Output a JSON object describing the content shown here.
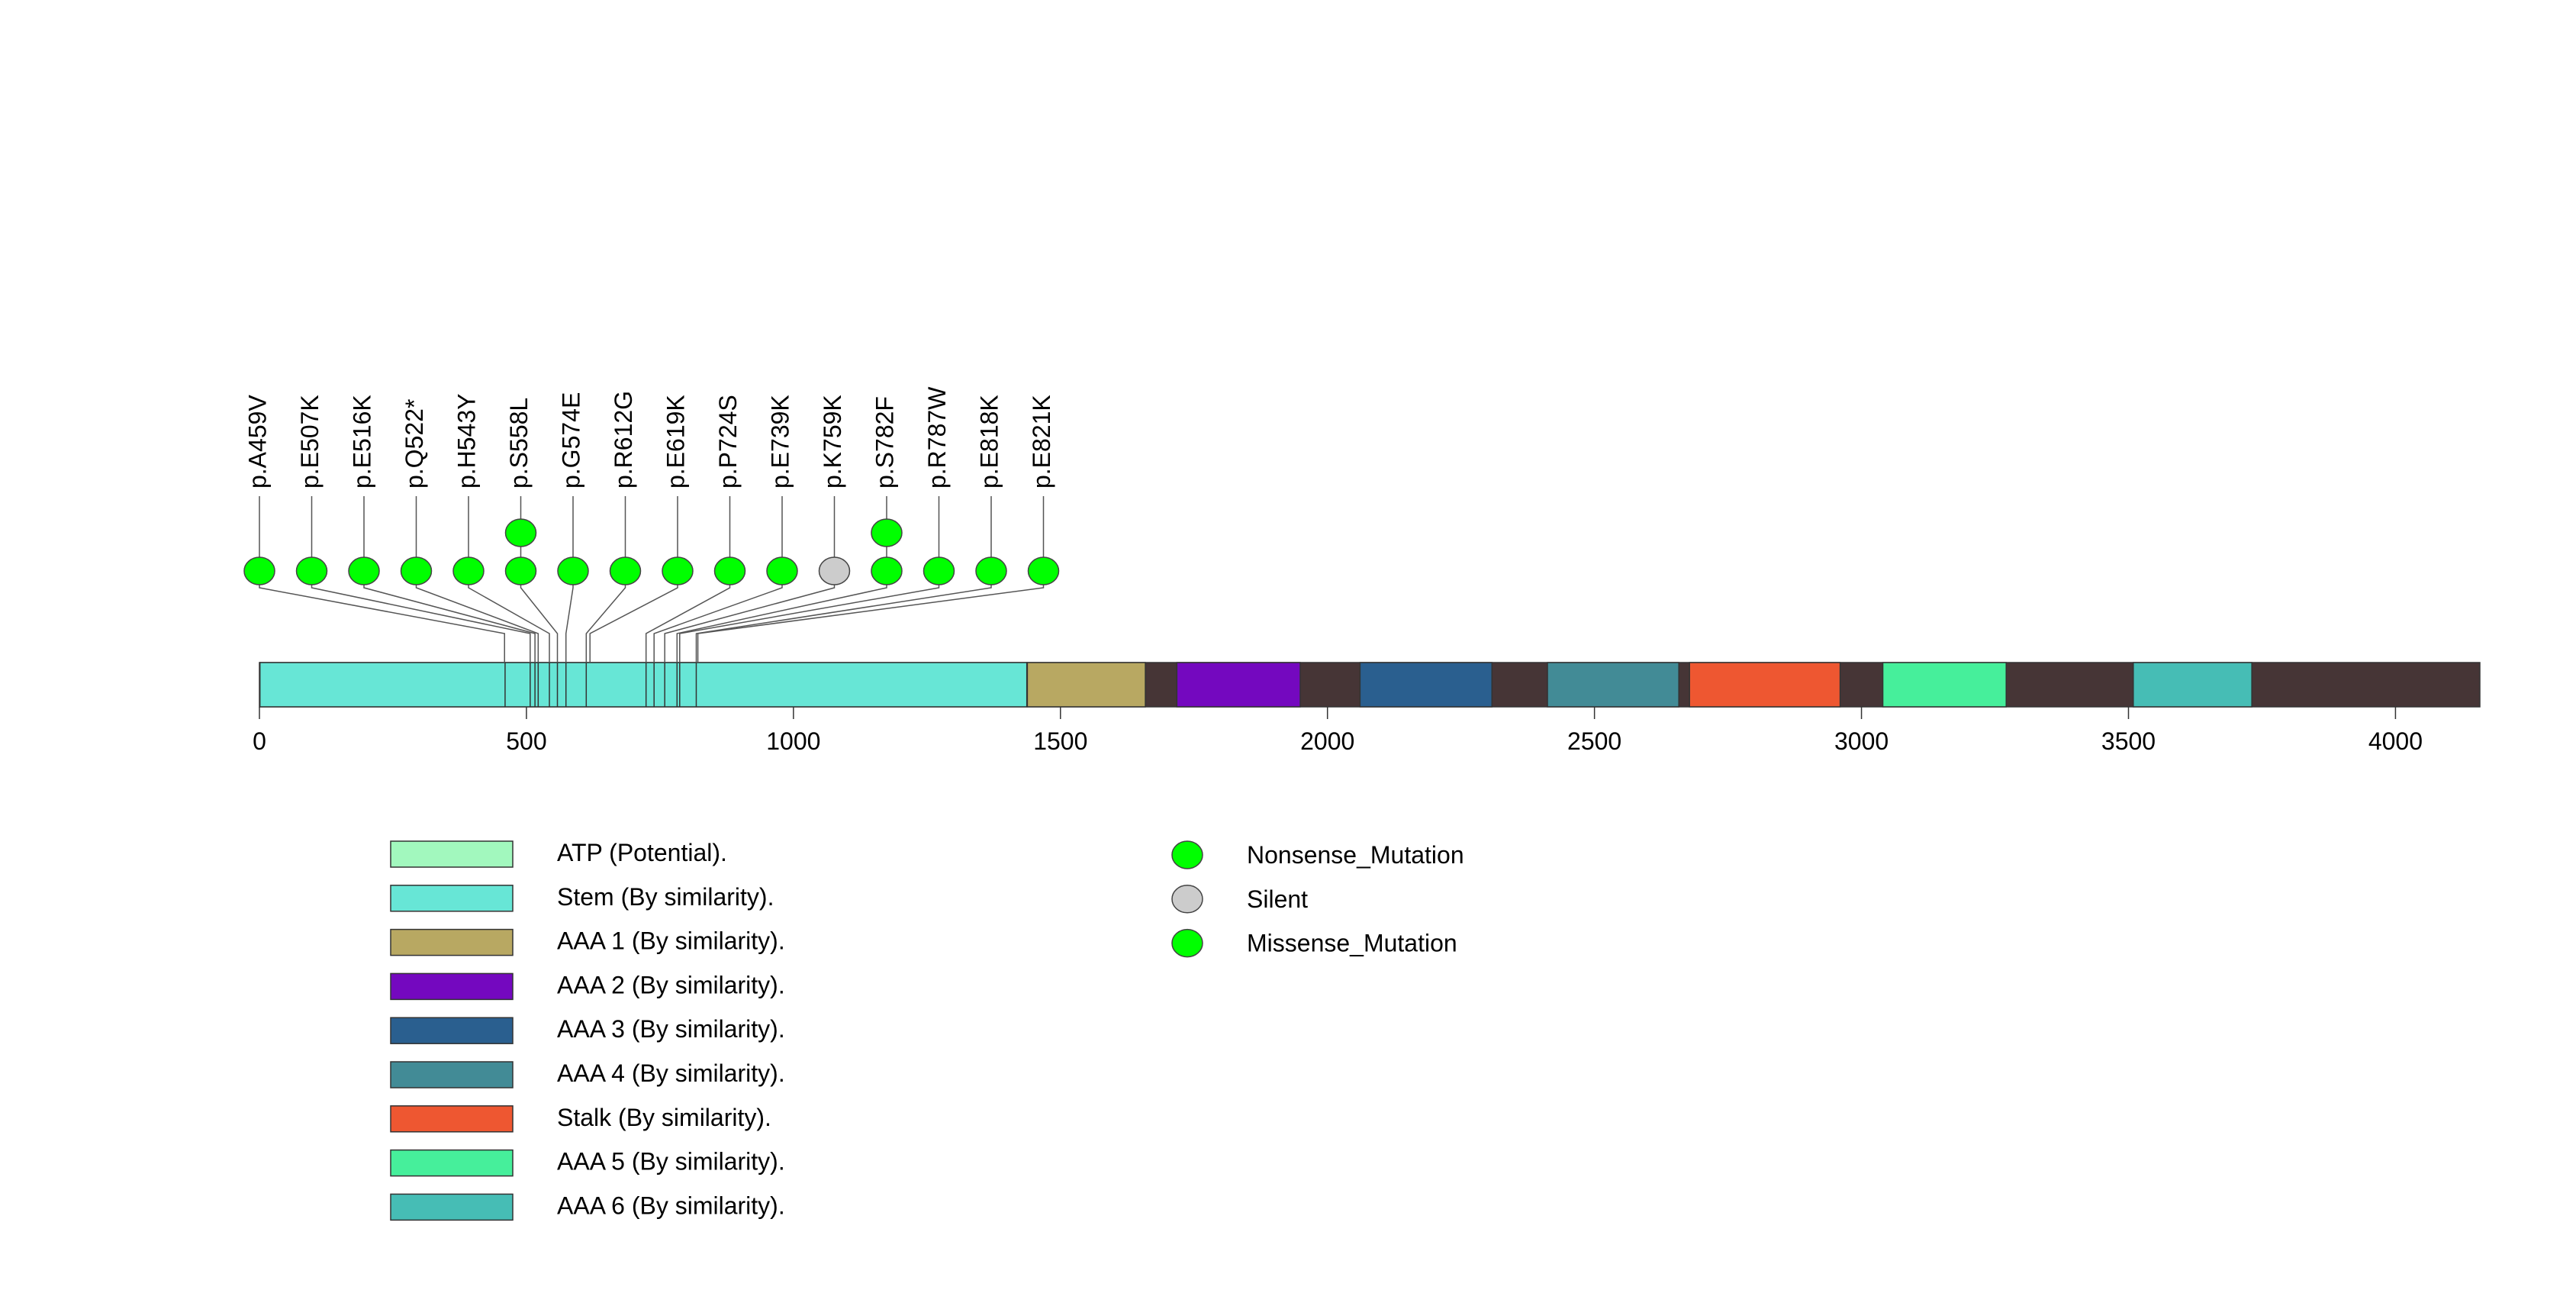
{
  "chart_data": {
    "type": "lollipop",
    "protein_length": 4158,
    "x_range": [
      0,
      4158
    ],
    "x_ticks": [
      0,
      500,
      1000,
      1500,
      2000,
      2500,
      3000,
      3500,
      4000
    ],
    "backbone_color": "#463536",
    "domains": [
      {
        "name": "Stem (By similarity).",
        "start": 1,
        "end": 1437,
        "color": "#67e6d6"
      },
      {
        "name": "AAA 1 (By similarity).",
        "start": 1438,
        "end": 1659,
        "color": "#b8a862"
      },
      {
        "name": "AAA 2 (By similarity).",
        "start": 1718,
        "end": 1949,
        "color": "#7408bf"
      },
      {
        "name": "AAA 3 (By similarity).",
        "start": 2061,
        "end": 2308,
        "color": "#2a5f8f"
      },
      {
        "name": "AAA 4 (By similarity).",
        "start": 2412,
        "end": 2658,
        "color": "#428b96"
      },
      {
        "name": "Stalk (By similarity).",
        "start": 2678,
        "end": 2960,
        "color": "#ee5731"
      },
      {
        "name": "AAA 5 (By similarity).",
        "start": 3040,
        "end": 3271,
        "color": "#46ef9b"
      },
      {
        "name": "AAA 6 (By similarity).",
        "start": 3509,
        "end": 3731,
        "color": "#46bdb5"
      }
    ],
    "atp_sites": [
      460,
      507,
      516,
      522,
      543,
      558,
      574,
      612,
      724,
      739,
      759,
      782,
      787,
      818
    ],
    "mutations": [
      {
        "label": "p.A459V",
        "position": 459,
        "count": 1,
        "type": "Missense_Mutation"
      },
      {
        "label": "p.E507K",
        "position": 507,
        "count": 1,
        "type": "Missense_Mutation"
      },
      {
        "label": "p.E516K",
        "position": 516,
        "count": 1,
        "type": "Missense_Mutation"
      },
      {
        "label": "p.Q522*",
        "position": 522,
        "count": 1,
        "type": "Nonsense_Mutation"
      },
      {
        "label": "p.H543Y",
        "position": 543,
        "count": 1,
        "type": "Missense_Mutation"
      },
      {
        "label": "p.S558L",
        "position": 558,
        "count": 2,
        "type": "Missense_Mutation"
      },
      {
        "label": "p.G574E",
        "position": 574,
        "count": 1,
        "type": "Missense_Mutation"
      },
      {
        "label": "p.R612G",
        "position": 612,
        "count": 1,
        "type": "Missense_Mutation"
      },
      {
        "label": "p.E619K",
        "position": 619,
        "count": 1,
        "type": "Missense_Mutation"
      },
      {
        "label": "p.P724S",
        "position": 724,
        "count": 1,
        "type": "Missense_Mutation"
      },
      {
        "label": "p.E739K",
        "position": 739,
        "count": 1,
        "type": "Missense_Mutation"
      },
      {
        "label": "p.K759K",
        "position": 759,
        "count": 1,
        "type": "Silent"
      },
      {
        "label": "p.S782F",
        "position": 782,
        "count": 2,
        "type": "Missense_Mutation"
      },
      {
        "label": "p.R787W",
        "position": 787,
        "count": 1,
        "type": "Missense_Mutation"
      },
      {
        "label": "p.E818K",
        "position": 818,
        "count": 1,
        "type": "Missense_Mutation"
      },
      {
        "label": "p.E821K",
        "position": 821,
        "count": 1,
        "type": "Missense_Mutation"
      }
    ],
    "domain_legend": [
      {
        "label": "ATP (Potential).",
        "color": "#a2f8be"
      },
      {
        "label": "Stem (By similarity).",
        "color": "#67e6d6"
      },
      {
        "label": "AAA 1 (By similarity).",
        "color": "#b8a862"
      },
      {
        "label": "AAA 2 (By similarity).",
        "color": "#7408bf"
      },
      {
        "label": "AAA 3 (By similarity).",
        "color": "#2a5f8f"
      },
      {
        "label": "AAA 4 (By similarity).",
        "color": "#428b96"
      },
      {
        "label": "Stalk (By similarity).",
        "color": "#ee5731"
      },
      {
        "label": "AAA 5 (By similarity).",
        "color": "#46ef9b"
      },
      {
        "label": "AAA 6 (By similarity).",
        "color": "#46bdb5"
      }
    ],
    "mutation_legend": [
      {
        "label": "Nonsense_Mutation",
        "color": "#00ff00"
      },
      {
        "label": "Silent",
        "color": "#cccccc"
      },
      {
        "label": "Missense_Mutation",
        "color": "#00ff00"
      }
    ]
  }
}
